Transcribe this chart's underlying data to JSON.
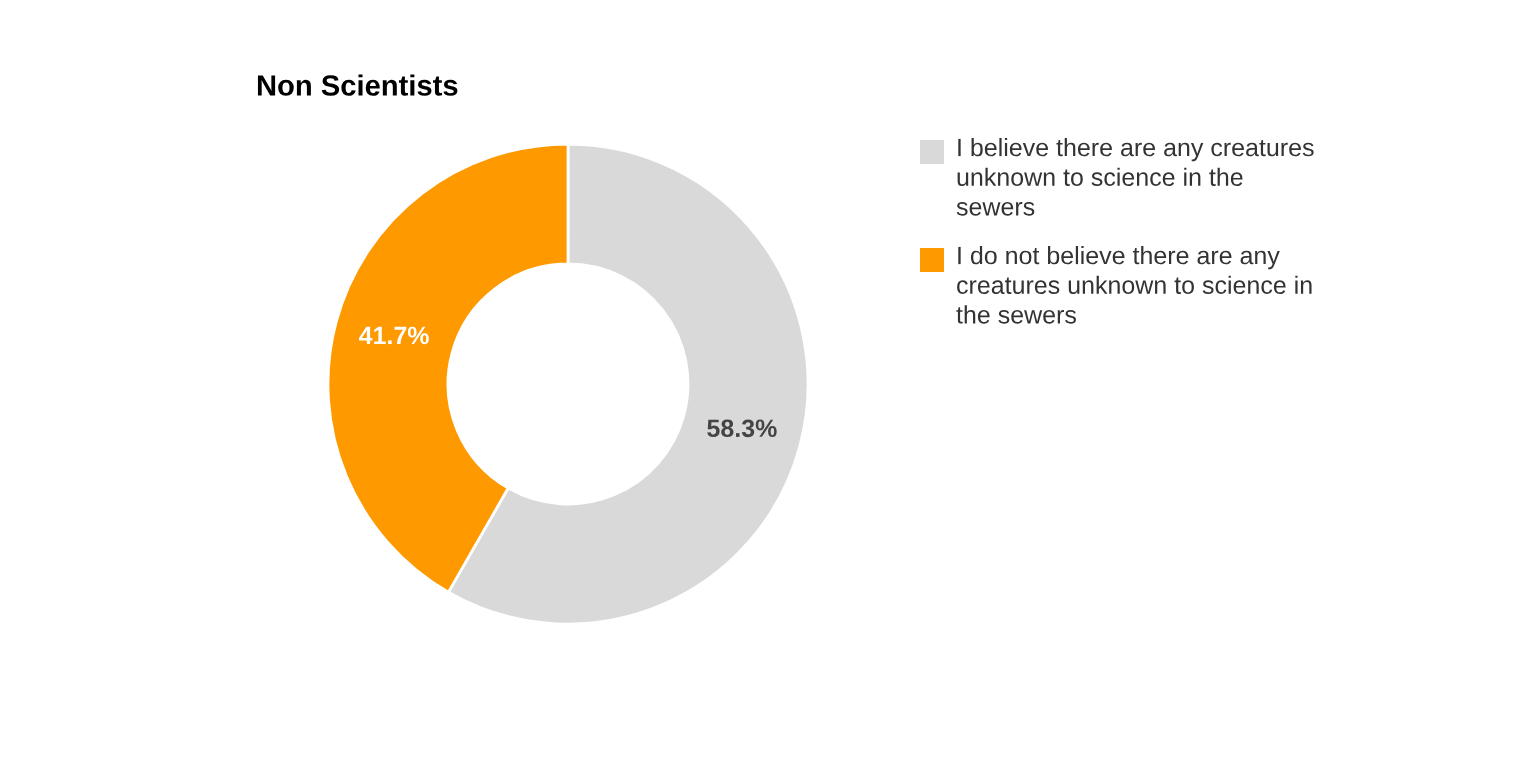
{
  "chart_data": {
    "type": "donut",
    "title": "Non Scientists",
    "categories": [
      "I believe there are any creatures unknown to science in the sewers",
      "I do not believe there are any creatures unknown to science in the sewers"
    ],
    "values": [
      58.3,
      41.7
    ],
    "colors": [
      "#d9d9d9",
      "#ff9900"
    ],
    "value_labels": [
      "58.3%",
      "41.7%"
    ],
    "legend": "right"
  }
}
